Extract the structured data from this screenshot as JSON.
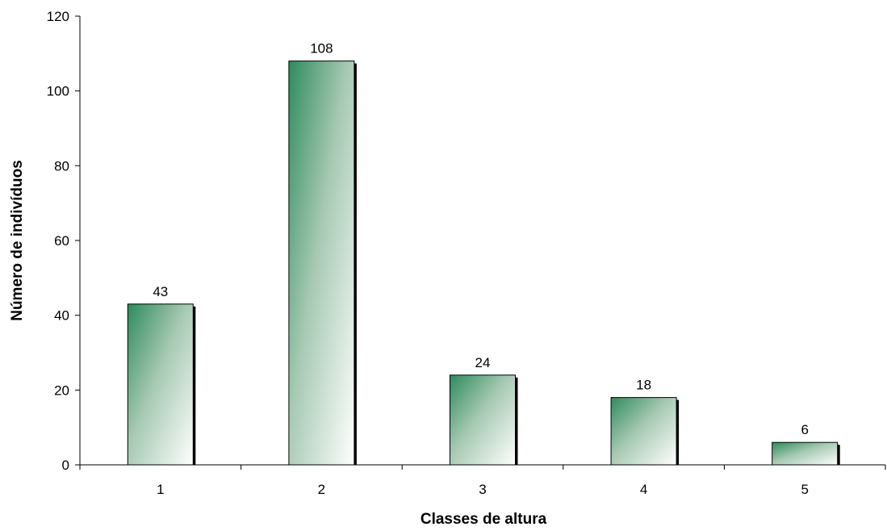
{
  "chart_data": {
    "type": "bar",
    "title": "",
    "xlabel": "Classes de altura",
    "ylabel": "Número de indivíduos",
    "categories": [
      "1",
      "2",
      "3",
      "4",
      "5"
    ],
    "values": [
      43,
      108,
      24,
      18,
      6
    ],
    "ylim": [
      0,
      120
    ],
    "yticks": [
      0,
      20,
      40,
      60,
      80,
      100,
      120
    ],
    "grid": false,
    "legend": "none",
    "data_labels": true
  },
  "colors": {
    "bar_gradient_start": "#2e8b5e",
    "bar_gradient_end": "#ffffff",
    "bar_shadow": "#000000",
    "axis": "#000000"
  }
}
